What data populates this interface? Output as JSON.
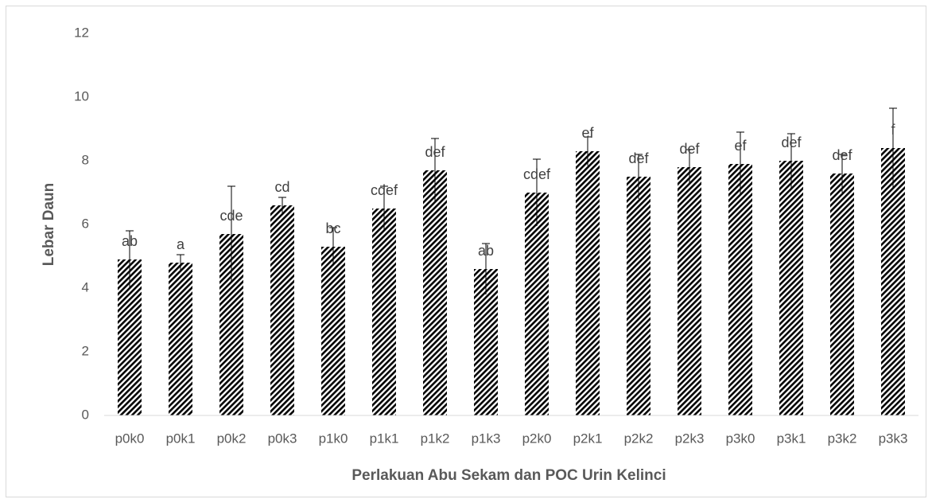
{
  "chart_data": {
    "type": "bar",
    "x_label": "Perlakuan Abu Sekam dan POC Urin Kelinci",
    "y_label": "Lebar Daun",
    "categories": [
      "p0k0",
      "p0k1",
      "p0k2",
      "p0k3",
      "p1k0",
      "p1k1",
      "p1k2",
      "p1k3",
      "p2k0",
      "p2k1",
      "p2k2",
      "p2k3",
      "p3k0",
      "p3k1",
      "p3k2",
      "p3k3"
    ],
    "values": [
      4.9,
      4.8,
      5.7,
      6.6,
      5.3,
      6.5,
      7.7,
      4.6,
      7.0,
      8.3,
      7.5,
      7.8,
      7.9,
      8.0,
      7.6,
      8.4
    ],
    "errors": [
      0.9,
      0.25,
      1.5,
      0.25,
      0.6,
      0.7,
      1.0,
      0.8,
      1.05,
      0.45,
      0.7,
      0.55,
      1.0,
      0.85,
      0.6,
      1.25
    ],
    "labels": [
      "ab",
      "a",
      "cde",
      "cd",
      "bc",
      "cdef",
      "def",
      "ab",
      "cdef",
      "ef",
      "def",
      "def",
      "ef",
      "def",
      "def",
      "f"
    ],
    "color": "#000000",
    "ylim": [
      0,
      12
    ],
    "yticks": [
      0,
      2,
      4,
      6,
      8,
      10,
      12
    ],
    "grid": false
  }
}
